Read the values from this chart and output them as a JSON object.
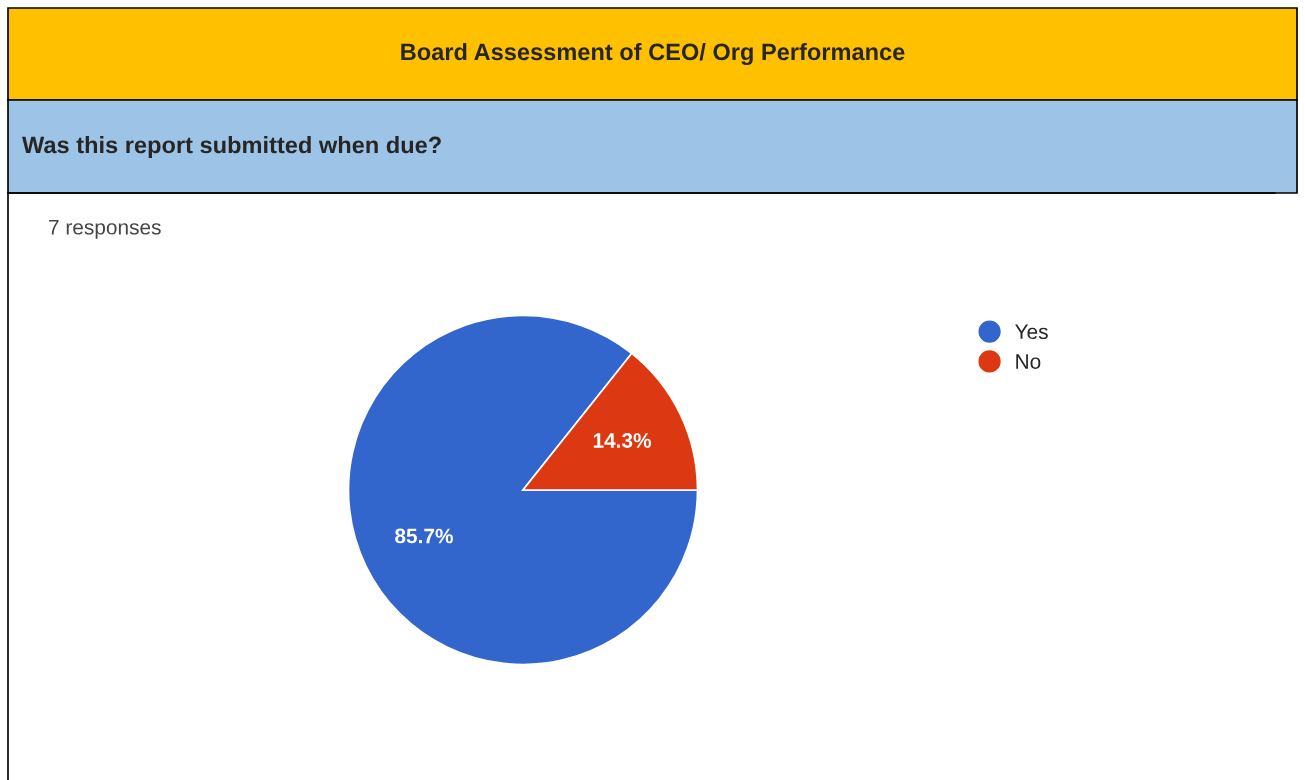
{
  "chart_data": {
    "type": "pie",
    "title": "Board Assessment of CEO/ Org Performance",
    "subtitle": "Was this report submitted when due?",
    "annotations": [
      "7 responses"
    ],
    "categories": [
      "Yes",
      "No"
    ],
    "values": [
      85.7,
      14.3
    ],
    "colors": [
      "#3366cc",
      "#dc3912"
    ],
    "value_labels": [
      "85.7%",
      "14.3%"
    ],
    "legend": "top right"
  }
}
